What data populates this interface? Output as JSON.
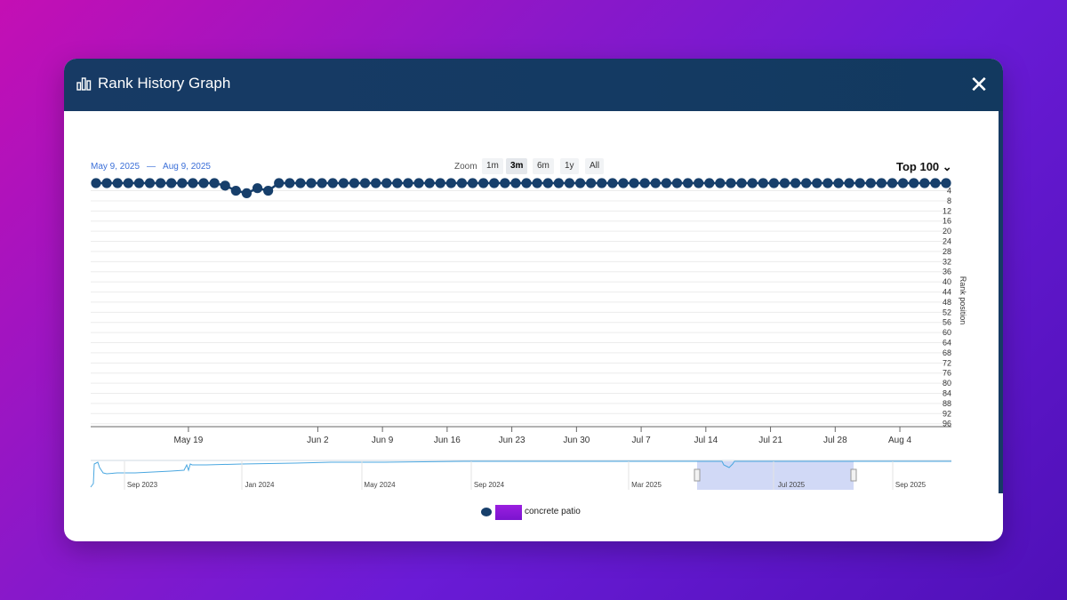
{
  "modal": {
    "title": "Rank History Graph",
    "close_label": "✕"
  },
  "controls": {
    "date_from": "May 9, 2025",
    "date_sep": "—",
    "date_to": "Aug 9, 2025",
    "zoom_label": "Zoom",
    "zoom_options": [
      "1m",
      "3m",
      "6m",
      "1y",
      "All"
    ],
    "zoom_selected": "3m",
    "top_filter": "Top 100",
    "top_chevron": "⌄"
  },
  "chart_data": {
    "type": "line",
    "ylabel": "Rank position",
    "y_reversed": true,
    "ylim": [
      1,
      100
    ],
    "y_ticks": [
      "4",
      "8",
      "12",
      "16",
      "20",
      "24",
      "28",
      "32",
      "36",
      "40",
      "44",
      "48",
      "52",
      "56",
      "60",
      "64",
      "68",
      "72",
      "76",
      "80",
      "84",
      "88",
      "92",
      "96"
    ],
    "x_ticks": [
      "May 19",
      "Jun 2",
      "Jun 9",
      "Jun 16",
      "Jun 23",
      "Jun 30",
      "Jul 7",
      "Jul 14",
      "Jul 21",
      "Jul 28",
      "Aug 4"
    ],
    "series": [
      {
        "name": "concrete patio",
        "color": "#173f6b",
        "x_start": "May 9, 2025",
        "values": [
          1,
          1,
          1,
          1,
          1,
          1,
          1,
          1,
          1,
          1,
          1,
          1,
          2,
          4,
          5,
          3,
          4,
          1,
          1,
          1,
          1,
          1,
          1,
          1,
          1,
          1,
          1,
          1,
          1,
          1,
          1,
          1,
          1,
          1,
          1,
          1,
          1,
          1,
          1,
          1,
          1,
          1,
          1,
          1,
          1,
          1,
          1,
          1,
          1,
          1,
          1,
          1,
          1,
          1,
          1,
          1,
          1,
          1,
          1,
          1,
          1,
          1,
          1,
          1,
          1,
          1,
          1,
          1,
          1,
          1,
          1,
          1,
          1,
          1,
          1,
          1,
          1,
          1,
          1,
          1
        ]
      }
    ],
    "navigator": {
      "labels": [
        "Sep 2023",
        "Jan 2024",
        "May 2024",
        "Sep 2024",
        "Mar 2025",
        "Jul 2025",
        "Sep 2025"
      ],
      "selected_range": [
        "May 9, 2025",
        "Aug 9, 2025"
      ],
      "line_color": "#4aa7e0"
    }
  },
  "legend": {
    "label": "concrete patio",
    "swatch_color": "#8a18d8"
  }
}
